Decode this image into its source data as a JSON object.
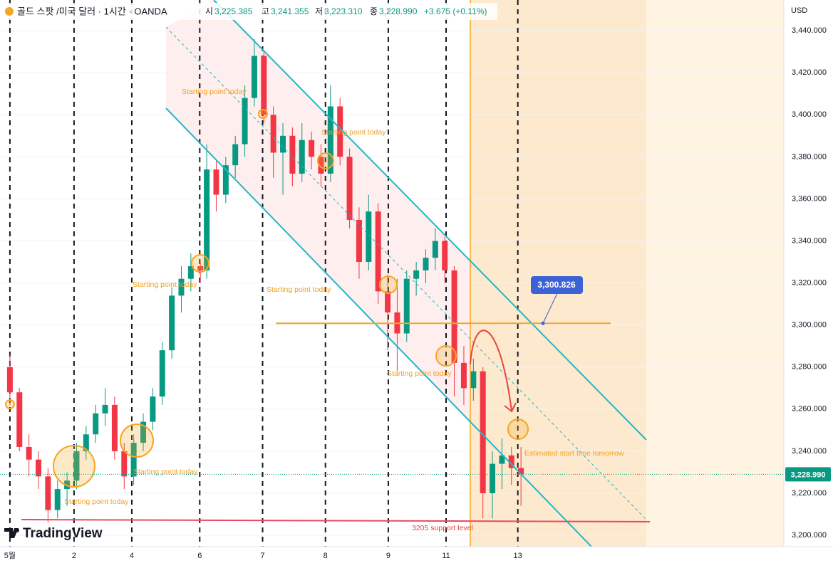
{
  "chart_data": {
    "type": "candlestick",
    "header": {
      "symbol": "골드 스팟 /미국 달러 · 1시간 · OANDA",
      "open_label": "시",
      "open": "3,225.385",
      "high_label": "고",
      "high": "3,241.355",
      "low_label": "저",
      "low": "3,223.310",
      "close_label": "종",
      "close": "3,228.990",
      "change": "+3.675 (+0.11%)"
    },
    "currency": "USD",
    "watermark": "TradingView",
    "up_color": "#089981",
    "down_color": "#f23645",
    "x": [
      0,
      0.15,
      0.3,
      0.45,
      0.6,
      0.75,
      0.9,
      1.05,
      1.2,
      1.35,
      1.5,
      1.65,
      1.8,
      1.95,
      2.1,
      2.25,
      2.4,
      2.55,
      2.7,
      2.85,
      3.0,
      3.1,
      3.25,
      3.4,
      3.55,
      3.7,
      3.85,
      4.0,
      4.15,
      4.3,
      4.45,
      4.6,
      4.75,
      4.9,
      5.05,
      5.2,
      5.35,
      5.5,
      5.65,
      5.8,
      5.95,
      6.1,
      6.25,
      6.4,
      6.55,
      6.7,
      6.85,
      7.0,
      7.15,
      7.3,
      7.45,
      7.6,
      7.75,
      7.9,
      8.05
    ],
    "open": [
      3280,
      3268,
      3242,
      3236,
      3228,
      3212,
      3222,
      3226,
      3240,
      3248,
      3258,
      3262,
      3240,
      3228,
      3244,
      3254,
      3266,
      3288,
      3314,
      3322,
      3328,
      3326,
      3374,
      3362,
      3376,
      3386,
      3408,
      3428,
      3400,
      3382,
      3390,
      3372,
      3388,
      3380,
      3372,
      3404,
      3380,
      3350,
      3330,
      3354,
      3316,
      3306,
      3296,
      3322,
      3326,
      3332,
      3340,
      3326,
      3282,
      3270,
      3278,
      3220,
      3234,
      3238,
      3232
    ],
    "high": [
      3286,
      3270,
      3248,
      3240,
      3232,
      3226,
      3230,
      3244,
      3252,
      3262,
      3270,
      3266,
      3244,
      3248,
      3258,
      3270,
      3292,
      3318,
      3328,
      3334,
      3330,
      3386,
      3378,
      3380,
      3390,
      3414,
      3436,
      3430,
      3404,
      3396,
      3394,
      3396,
      3392,
      3386,
      3414,
      3408,
      3384,
      3356,
      3362,
      3358,
      3324,
      3322,
      3326,
      3330,
      3336,
      3346,
      3342,
      3328,
      3290,
      3284,
      3280,
      3240,
      3246,
      3242,
      3242
    ],
    "low": [
      3262,
      3240,
      3228,
      3222,
      3206,
      3208,
      3214,
      3222,
      3236,
      3244,
      3252,
      3236,
      3222,
      3224,
      3240,
      3250,
      3262,
      3284,
      3306,
      3316,
      3320,
      3322,
      3354,
      3358,
      3370,
      3380,
      3404,
      3396,
      3370,
      3362,
      3366,
      3368,
      3374,
      3366,
      3368,
      3376,
      3346,
      3322,
      3326,
      3310,
      3288,
      3278,
      3292,
      3314,
      3320,
      3326,
      3320,
      3266,
      3262,
      3264,
      3208,
      3208,
      3222,
      3224,
      3214
    ],
    "close": [
      3268,
      3242,
      3236,
      3228,
      3212,
      3222,
      3226,
      3240,
      3248,
      3258,
      3262,
      3240,
      3228,
      3244,
      3254,
      3266,
      3288,
      3314,
      3322,
      3328,
      3326,
      3374,
      3362,
      3376,
      3386,
      3408,
      3428,
      3400,
      3382,
      3390,
      3372,
      3388,
      3380,
      3372,
      3404,
      3380,
      3350,
      3330,
      3354,
      3316,
      3306,
      3296,
      3322,
      3326,
      3332,
      3340,
      3326,
      3282,
      3270,
      3278,
      3220,
      3234,
      3238,
      3232,
      3229
    ],
    "xlim": [
      -0.1,
      12.19
    ],
    "xticks": [
      {
        "value": 0,
        "label": "5월"
      },
      {
        "value": 1.01,
        "label": "2"
      },
      {
        "value": 1.92,
        "label": "4"
      },
      {
        "value": 2.99,
        "label": "6"
      },
      {
        "value": 3.98,
        "label": "7"
      },
      {
        "value": 4.97,
        "label": "8"
      },
      {
        "value": 5.96,
        "label": "9"
      },
      {
        "value": 6.87,
        "label": "11"
      },
      {
        "value": 8.0,
        "label": "13"
      }
    ],
    "ylim": [
      3194.6,
      3454.6
    ],
    "yticks": [
      {
        "value": 3200,
        "label": "3,200.000"
      },
      {
        "value": 3220,
        "label": "3,220.000"
      },
      {
        "value": 3240,
        "label": "3,240.000"
      },
      {
        "value": 3260,
        "label": "3,260.000"
      },
      {
        "value": 3280,
        "label": "3,280.000"
      },
      {
        "value": 3300,
        "label": "3,300.000"
      },
      {
        "value": 3320,
        "label": "3,320.000"
      },
      {
        "value": 3340,
        "label": "3,340.000"
      },
      {
        "value": 3360,
        "label": "3,360.000"
      },
      {
        "value": 3380,
        "label": "3,380.000"
      },
      {
        "value": 3400,
        "label": "3,400.000"
      },
      {
        "value": 3420,
        "label": "3,420.000"
      },
      {
        "value": 3440,
        "label": "3,440.000"
      }
    ],
    "grid": true,
    "last_price": {
      "value": 3228.99,
      "label": "3,228.990"
    },
    "level": {
      "value": 3300.826,
      "label": "3,300.826"
    },
    "annotations": [
      "Starting point today",
      "Starting point today",
      "Starting point today",
      "Starting point today",
      "Starting point today",
      "Starting point today",
      "Starting point today",
      "Estimated start time tomorrow",
      "3205 support level"
    ]
  }
}
